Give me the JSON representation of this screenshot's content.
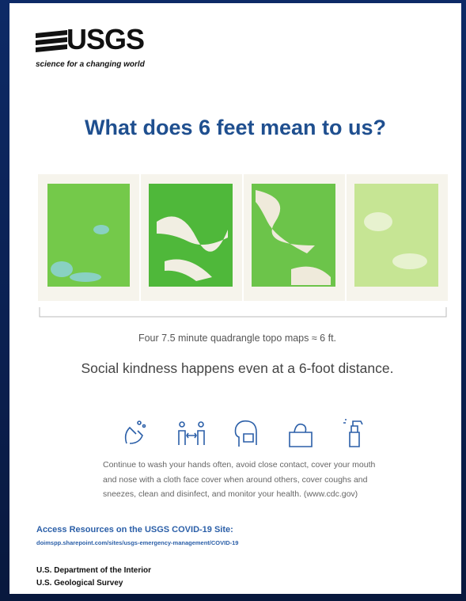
{
  "header": {
    "logo_text": "USGS",
    "tagline": "science for a changing world"
  },
  "title": "What does 6 feet mean to us?",
  "caption": "Four 7.5 minute quadrangle topo maps ≈ 6 ft.",
  "subtitle": "Social kindness happens even at a 6-foot distance.",
  "body": {
    "lines": [
      "Continue to wash your hands often, avoid close contact, cover your mouth",
      "and nose with a cloth face cover when around others, cover coughs and",
      "sneezes, clean and disinfect, and monitor your health. (www.cdc.gov)"
    ]
  },
  "access": {
    "heading": "Access Resources on the USGS COVID-19 Site:",
    "url": "doimspp.sharepoint.com/sites/usgs-emergency-management/COVID-19"
  },
  "footer": {
    "lines": [
      "U.S. Department of the Interior",
      "U.S. Geological Survey"
    ]
  }
}
